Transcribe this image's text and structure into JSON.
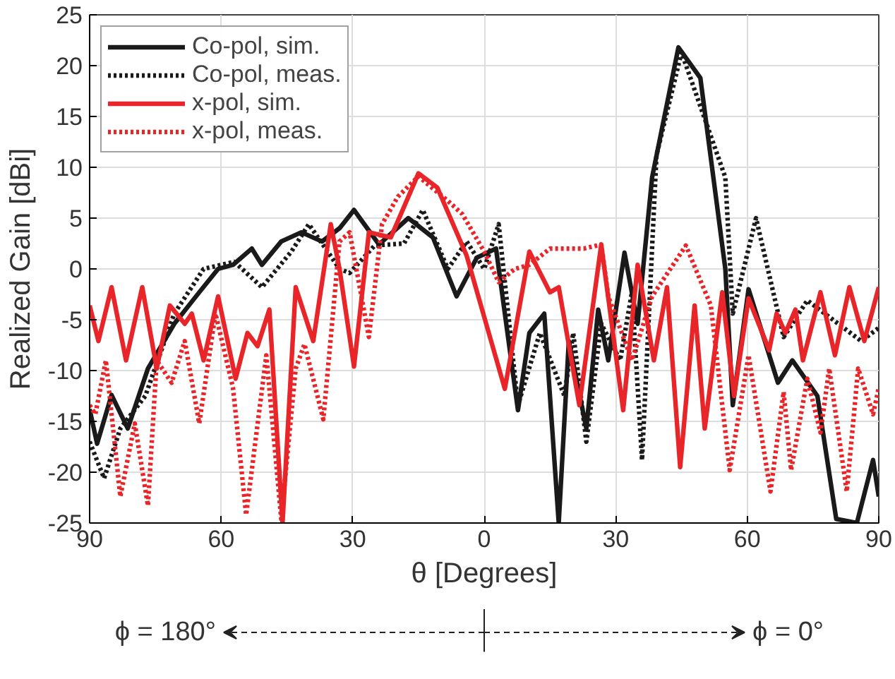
{
  "chart_data": {
    "type": "line",
    "xlabel": "θ [Degrees]",
    "ylabel": "Realized Gain [dBi]",
    "xlim": [
      -90,
      90
    ],
    "ylim": [
      -25,
      25
    ],
    "xticks": [
      {
        "value": -90,
        "label": "90"
      },
      {
        "value": -60,
        "label": "60"
      },
      {
        "value": -30,
        "label": "30"
      },
      0,
      30,
      60,
      90
    ],
    "yticks": [
      -25,
      -20,
      -15,
      -10,
      -5,
      0,
      5,
      10,
      15,
      20,
      25
    ],
    "grid": true,
    "legend": "top left",
    "annotations": [
      "ϕ = 180°",
      "ϕ = 0°"
    ],
    "series": [
      {
        "name": "Co-pol, sim.",
        "color": "#1a1a1a",
        "line_style": "solid",
        "x": [
          -90,
          -88.3,
          -85,
          -81.3,
          -76.7,
          -70.7,
          -65,
          -60.7,
          -57.3,
          -53,
          -50.7,
          -46.3,
          -41.7,
          -37,
          -33,
          -29.7,
          -24,
          -17.3,
          -11.7,
          -6.3,
          -1.7,
          2.7,
          7.7,
          10.3,
          13.7,
          17,
          19.3,
          23.3,
          26,
          28.3,
          32,
          35,
          38.3,
          44.3,
          49.3,
          55,
          56.7,
          60.3,
          67,
          70.3,
          76,
          80.3,
          85,
          88.7,
          90
        ],
        "values": [
          -13.8,
          -17.2,
          -12.4,
          -15.7,
          -9.8,
          -5.4,
          -2.3,
          0,
          0.4,
          2,
          0.4,
          2.7,
          3.6,
          2.7,
          4,
          5.8,
          2.4,
          5,
          3.1,
          -2.7,
          1.1,
          2,
          -13.9,
          -6.3,
          -4.4,
          -25,
          -7.1,
          -15.7,
          -4,
          -9,
          1.6,
          -5.4,
          9,
          21.8,
          18.8,
          0,
          -13.4,
          -2,
          -11.2,
          -9,
          -12.5,
          -24.6,
          -25,
          -18.8,
          -22.4
        ]
      },
      {
        "name": "Co-pol, meas.",
        "color": "#1a1a1a",
        "line_style": "dotted",
        "x": [
          -90,
          -86.7,
          -83,
          -77.3,
          -70.7,
          -64,
          -57,
          -50.7,
          -44,
          -40,
          -33,
          -30.7,
          -25,
          -18.3,
          -14,
          -8.3,
          -4,
          0,
          3.3,
          7.7,
          12.7,
          18.3,
          20.3,
          23.3,
          26.7,
          31,
          33.7,
          36,
          39.3,
          45,
          55,
          56.7,
          62,
          68.3,
          73.7,
          86,
          90
        ],
        "values": [
          -17,
          -20.6,
          -15.7,
          -12.5,
          -4.4,
          0,
          0.7,
          -1.8,
          1.7,
          4.4,
          0,
          -0.4,
          2.3,
          2.5,
          5.8,
          0,
          2.7,
          0,
          4.4,
          -13.4,
          -6.3,
          -12.5,
          -6.3,
          -17,
          -5.4,
          -9,
          -2.3,
          -18.8,
          11.2,
          21.3,
          9,
          -4.4,
          5,
          -6.7,
          -3.1,
          -7.1,
          -5.8
        ]
      },
      {
        "name": "x-pol, sim.",
        "color": "#e8262a",
        "line_style": "solid",
        "x": [
          -90,
          -88,
          -85,
          -81.7,
          -78,
          -74.7,
          -71.7,
          -68.3,
          -66.7,
          -64,
          -60.7,
          -56.7,
          -54,
          -51.7,
          -49,
          -46,
          -43,
          -39,
          -35,
          -33,
          -29.7,
          -26.3,
          -21.3,
          -15,
          -10.7,
          -4,
          4.7,
          10.3,
          15,
          17,
          21.7,
          26.7,
          27.7,
          31.7,
          35,
          38.7,
          41.7,
          44.7,
          48,
          50.3,
          54.3,
          57,
          60.3,
          65,
          66.7,
          68.7,
          71,
          72.7,
          76.7,
          80,
          83.3,
          86.7,
          90
        ],
        "values": [
          -3.6,
          -7.1,
          -1.8,
          -9,
          -1.8,
          -9.8,
          -3.6,
          -5.4,
          -4.4,
          -9,
          -2.7,
          -10.8,
          -6.3,
          -7.6,
          -4,
          -25,
          -1.8,
          -7.1,
          4.4,
          0,
          -9.6,
          3.6,
          3.1,
          9.4,
          8,
          1.3,
          -11.8,
          1.7,
          -2.3,
          -1.8,
          -13.4,
          2.4,
          -0.9,
          -13.9,
          0.4,
          -9,
          -1.8,
          -19.5,
          -3.6,
          -15.7,
          -2.3,
          -12.5,
          -2.9,
          -8,
          -4.4,
          -6.3,
          -4,
          -9,
          -2.3,
          -8.5,
          -1.8,
          -7.1,
          -1.8
        ]
      },
      {
        "name": "x-pol, meas.",
        "color": "#e8262a",
        "line_style": "dotted",
        "x": [
          -90,
          -88.7,
          -86.3,
          -83,
          -79.7,
          -76.7,
          -74.7,
          -71.3,
          -68.3,
          -65,
          -61.3,
          -57.3,
          -54.3,
          -49.7,
          -46.3,
          -43,
          -41,
          -36.7,
          -33,
          -30.7,
          -26.3,
          -23.3,
          -19.7,
          -15,
          -8.3,
          -5,
          0,
          3.3,
          7,
          10.3,
          15,
          22.7,
          26.7,
          28.3,
          33.7,
          38.3,
          46,
          51.7,
          56,
          60.3,
          65.3,
          68.3,
          70,
          73.7,
          76.7,
          78.7,
          82.7,
          85.3,
          88.7,
          90
        ],
        "values": [
          -13.4,
          -14.3,
          -9,
          -22.4,
          -15.2,
          -23.3,
          -9,
          -11.2,
          -7.1,
          -15.2,
          -4.4,
          -11.7,
          -24.2,
          -8.5,
          -24.6,
          -9.8,
          -7.4,
          -14.8,
          2.7,
          3.6,
          -6.7,
          4.4,
          7.1,
          9.1,
          6.7,
          5.4,
          1.7,
          -1.3,
          0,
          0.4,
          2,
          2,
          2.4,
          -2.7,
          -9,
          -2.7,
          2.3,
          -3.6,
          -19.8,
          -8.5,
          -21.9,
          -12.1,
          -19.8,
          -10.8,
          -16.1,
          -9.8,
          -21.9,
          -9.8,
          -14.3,
          -11.7
        ]
      }
    ]
  }
}
